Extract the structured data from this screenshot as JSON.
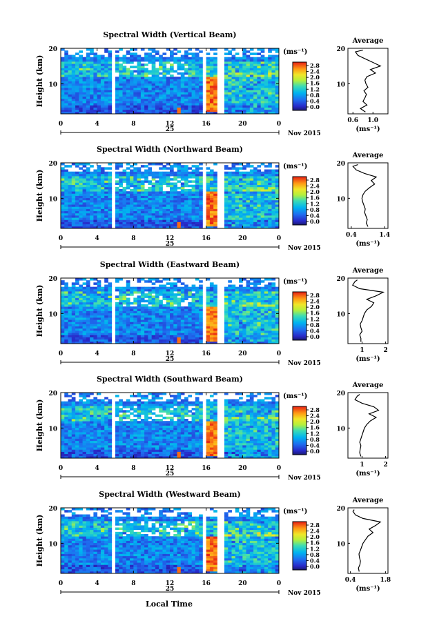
{
  "figure": {
    "xlabel": "Local Time",
    "date_label": "Nov 2015",
    "day_label": "25",
    "cb_unit_label": "(ms⁻¹)",
    "avg_xlabel": "(ms⁻¹)",
    "avg_title": "Average",
    "ylabel": "Height (km)"
  },
  "chart_data": [
    {
      "type": "heatmap",
      "title": "Spectral Width (Vertical Beam)",
      "ylabel": "Height (km)",
      "xlabel": "Local Time",
      "x_ticks": [
        "0",
        "4",
        "8",
        "12",
        "16",
        "20",
        "0"
      ],
      "y_ticks": [
        "10",
        "20"
      ],
      "xlim": [
        0,
        24
      ],
      "ylim": [
        1.5,
        20
      ],
      "colorbar": {
        "label": "(ms⁻¹)",
        "ticks": [
          "2.8",
          "2.4",
          "2.0",
          "1.6",
          "1.2",
          "0.8",
          "0.4",
          "0.0"
        ],
        "range": [
          0,
          2.8
        ]
      },
      "data_gaps_hours": [
        [
          5.6,
          6.1
        ],
        [
          15.5,
          16.1
        ],
        [
          17.3,
          17.8
        ]
      ],
      "high_width_region": {
        "time_hours": [
          16,
          17.2
        ],
        "height_km": [
          2,
          12
        ],
        "value": "2.8"
      },
      "average_profile": {
        "title": "Average",
        "xlabel": "(ms⁻¹)",
        "x_ticks": [
          "0.6",
          "1.0"
        ],
        "xlim": [
          0.5,
          1.3
        ],
        "y_ticks": [
          "10",
          "20"
        ],
        "height_km": [
          2,
          3,
          4,
          5,
          6,
          7,
          8,
          9,
          10,
          11,
          12,
          13,
          14,
          15,
          16,
          17,
          18,
          19,
          19.5
        ],
        "width": [
          0.85,
          0.75,
          0.88,
          0.8,
          0.84,
          0.87,
          0.82,
          0.9,
          0.86,
          0.84,
          0.88,
          1.05,
          0.95,
          1.15,
          1.0,
          0.85,
          0.7,
          0.65,
          0.8
        ]
      }
    },
    {
      "type": "heatmap",
      "title": "Spectral Width (Northward Beam)",
      "ylabel": "Height (km)",
      "xlabel": "Local Time",
      "x_ticks": [
        "0",
        "4",
        "8",
        "12",
        "16",
        "20",
        "0"
      ],
      "y_ticks": [
        "10",
        "20"
      ],
      "xlim": [
        0,
        24
      ],
      "ylim": [
        1.5,
        20
      ],
      "colorbar": {
        "label": "(ms⁻¹)",
        "ticks": [
          "2.8",
          "2.4",
          "2.0",
          "1.6",
          "1.2",
          "0.8",
          "0.4",
          "0.0"
        ],
        "range": [
          0,
          2.8
        ]
      },
      "data_gaps_hours": [
        [
          5.6,
          6.1
        ],
        [
          15.5,
          16.1
        ],
        [
          17.3,
          17.8
        ]
      ],
      "high_width_region": {
        "time_hours": [
          16,
          17.2
        ],
        "height_km": [
          2,
          12
        ],
        "value": "2.8"
      },
      "average_profile": {
        "title": "Average",
        "xlabel": "(ms⁻¹)",
        "x_ticks": [
          "0.4",
          "1.4"
        ],
        "xlim": [
          0.3,
          1.5
        ],
        "y_ticks": [
          "10",
          "20"
        ],
        "height_km": [
          2,
          3,
          4,
          5,
          6,
          7,
          8,
          9,
          10,
          11,
          12,
          13,
          14,
          15,
          16,
          17,
          18,
          19,
          19.5
        ],
        "width": [
          0.9,
          0.85,
          0.88,
          0.84,
          0.8,
          0.82,
          0.78,
          0.74,
          0.72,
          0.75,
          0.82,
          0.95,
          1.1,
          1.0,
          1.15,
          0.8,
          0.55,
          0.45,
          0.6
        ]
      }
    },
    {
      "type": "heatmap",
      "title": "Spectral Width (Eastward Beam)",
      "ylabel": "Height (km)",
      "xlabel": "Local Time",
      "x_ticks": [
        "0",
        "4",
        "8",
        "12",
        "16",
        "20",
        "0"
      ],
      "y_ticks": [
        "10",
        "20"
      ],
      "xlim": [
        0,
        24
      ],
      "ylim": [
        1.5,
        20
      ],
      "colorbar": {
        "label": "(ms⁻¹)",
        "ticks": [
          "2.8",
          "2.4",
          "2.0",
          "1.6",
          "1.2",
          "0.8",
          "0.4",
          "0.0"
        ],
        "range": [
          0,
          2.8
        ]
      },
      "data_gaps_hours": [
        [
          5.6,
          6.1
        ],
        [
          15.5,
          16.1
        ],
        [
          17.3,
          17.8
        ]
      ],
      "high_width_region": {
        "time_hours": [
          16,
          17.2
        ],
        "height_km": [
          2,
          12
        ],
        "value": "2.8"
      },
      "average_profile": {
        "title": "Average",
        "xlabel": "(ms⁻¹)",
        "x_ticks": [
          "1",
          "2"
        ],
        "xlim": [
          0.4,
          2.1
        ],
        "y_ticks": [
          "10",
          "20"
        ],
        "height_km": [
          2,
          3,
          4,
          5,
          6,
          7,
          8,
          9,
          10,
          11,
          12,
          13,
          14,
          15,
          16,
          17,
          18,
          19,
          19.5
        ],
        "width": [
          0.95,
          0.95,
          0.9,
          1.0,
          0.95,
          0.92,
          1.0,
          1.05,
          1.1,
          1.2,
          1.4,
          1.5,
          1.2,
          1.6,
          1.9,
          0.9,
          0.6,
          0.7,
          0.8
        ]
      }
    },
    {
      "type": "heatmap",
      "title": "Spectral Width (Southward Beam)",
      "ylabel": "Height (km)",
      "xlabel": "Local Time",
      "x_ticks": [
        "0",
        "4",
        "8",
        "12",
        "16",
        "20",
        "0"
      ],
      "y_ticks": [
        "10",
        "20"
      ],
      "xlim": [
        0,
        24
      ],
      "ylim": [
        1.5,
        20
      ],
      "colorbar": {
        "label": "(ms⁻¹)",
        "ticks": [
          "2.8",
          "2.4",
          "2.0",
          "1.6",
          "1.2",
          "0.8",
          "0.4",
          "0.0"
        ],
        "range": [
          0,
          2.8
        ]
      },
      "data_gaps_hours": [
        [
          5.6,
          6.1
        ],
        [
          15.5,
          16.1
        ],
        [
          17.3,
          17.8
        ]
      ],
      "high_width_region": {
        "time_hours": [
          16,
          17.2
        ],
        "height_km": [
          2,
          12
        ],
        "value": "2.8"
      },
      "average_profile": {
        "title": "Average",
        "xlabel": "(ms⁻¹)",
        "x_ticks": [
          "1",
          "2"
        ],
        "xlim": [
          0.4,
          2.1
        ],
        "y_ticks": [
          "10",
          "20"
        ],
        "height_km": [
          2,
          3,
          4,
          5,
          6,
          7,
          8,
          9,
          10,
          11,
          12,
          13,
          14,
          15,
          16,
          17,
          18,
          19,
          19.5
        ],
        "width": [
          0.95,
          0.9,
          0.92,
          0.95,
          0.9,
          0.95,
          1.0,
          1.05,
          1.1,
          1.2,
          1.35,
          1.6,
          1.3,
          1.7,
          1.5,
          1.0,
          0.7,
          0.8,
          0.9
        ]
      }
    },
    {
      "type": "heatmap",
      "title": "Spectral Width (Westward Beam)",
      "ylabel": "Height (km)",
      "xlabel": "Local Time",
      "x_ticks": [
        "0",
        "4",
        "8",
        "12",
        "16",
        "20",
        "0"
      ],
      "y_ticks": [
        "10",
        "20"
      ],
      "xlim": [
        0,
        24
      ],
      "ylim": [
        1.5,
        20
      ],
      "colorbar": {
        "label": "(ms⁻¹)",
        "ticks": [
          "2.8",
          "2.4",
          "2.0",
          "1.6",
          "1.2",
          "0.8",
          "0.4",
          "0.0"
        ],
        "range": [
          0,
          2.8
        ]
      },
      "data_gaps_hours": [
        [
          5.6,
          6.1
        ],
        [
          15.5,
          16.1
        ],
        [
          17.3,
          17.8
        ]
      ],
      "high_width_region": {
        "time_hours": [
          16,
          17.2
        ],
        "height_km": [
          2,
          12
        ],
        "value": "2.8"
      },
      "average_profile": {
        "title": "Average",
        "xlabel": "(ms⁻¹)",
        "x_ticks": [
          "0.4",
          "1.8"
        ],
        "xlim": [
          0.3,
          1.9
        ],
        "y_ticks": [
          "10",
          "20"
        ],
        "height_km": [
          2,
          3,
          4,
          5,
          6,
          7,
          8,
          9,
          10,
          11,
          12,
          13,
          14,
          15,
          16,
          17,
          18,
          19,
          19.5
        ],
        "width": [
          0.75,
          0.72,
          0.78,
          0.8,
          0.76,
          0.74,
          0.8,
          0.85,
          0.9,
          1.0,
          1.1,
          1.3,
          1.15,
          1.4,
          1.6,
          0.9,
          0.6,
          0.5,
          0.55
        ]
      }
    }
  ]
}
